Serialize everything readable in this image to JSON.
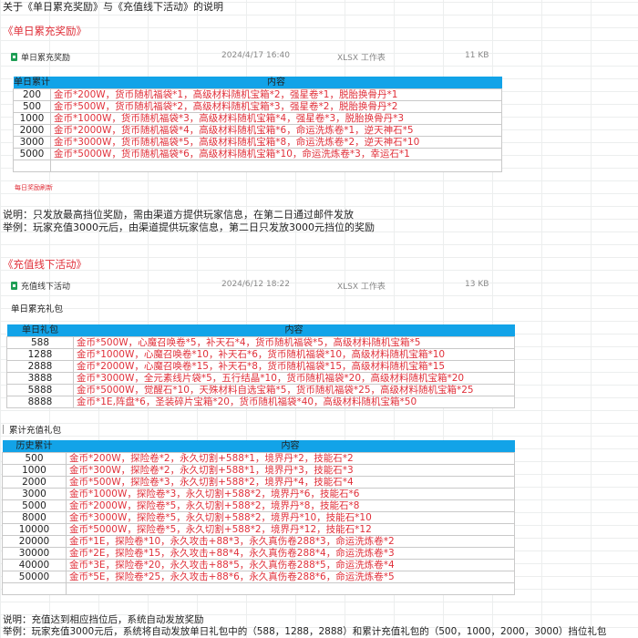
{
  "title": "关于《单日累充奖励》与《充值线下活动》的说明",
  "section1": {
    "heading": "《单日累充奖励》",
    "file": {
      "name": "单日累充奖励",
      "date": "2024/4/17 16:40",
      "type": "XLSX 工作表",
      "size": "11 KB",
      "icon": "xlsx-file-icon"
    },
    "table": {
      "headers": [
        "单日累计",
        "内容"
      ],
      "rows": [
        [
          "200",
          "金币*200W，货币随机福袋*1，高级材料随机宝箱*2，强星卷*1，脱胎换骨丹*1"
        ],
        [
          "500",
          "金币*500W，货币随机福袋*2，高级材料随机宝箱*3，强星卷*2，脱胎换骨丹*2"
        ],
        [
          "1000",
          "金币*1000W，货币随机福袋*3，高级材料随机宝箱*4，强星卷*3，脱胎换骨丹*3"
        ],
        [
          "2000",
          "金币*2000W，货币随机福袋*4，高级材料随机宝箱*6，命运洗炼卷*1，逆天神石*5"
        ],
        [
          "3000",
          "金币*3000W，货币随机福袋*5，高级材料随机宝箱*8，命运洗炼卷*2，逆天神石*10"
        ],
        [
          "5000",
          "金币*5000W，货币随机福袋*6，高级材料随机宝箱*10，命运洗炼卷*3，幸运石*1"
        ]
      ]
    },
    "note_small": "每日奖励刷新",
    "desc": "说明：只发放最高挡位奖励，需由渠道方提供玩家信息，在第二日通过邮件发放",
    "example": "举例：玩家充值3000元后，由渠道提供玩家信息，第二日只发放3000元挡位的奖励"
  },
  "section2": {
    "heading": "《充值线下活动》",
    "file": {
      "name": "充值线下活动",
      "date": "2024/6/12 18:22",
      "type": "XLSX 工作表",
      "size": "13 KB",
      "icon": "xlsx-file-icon"
    },
    "sub1": "单日累充礼包",
    "table1": {
      "headers": [
        "单日礼包",
        "内容"
      ],
      "rows": [
        [
          "588",
          "金币*500W，心魔召唤卷*5，补天石*4，货币随机福袋*5，高级材料随机宝箱*5"
        ],
        [
          "1288",
          "金币*1000W，心魔召唤卷*10，补天石*6，货币随机福袋*10，高级材料随机宝箱*10"
        ],
        [
          "2888",
          "金币*2000W，心魔召唤卷*15，补天石*8，货币随机福袋*15，高级材料随机宝箱*15"
        ],
        [
          "3888",
          "金币*3000W，全元素线片袋*5，五行结晶*10，货币随机福袋*20，高级材料随机宝箱*20"
        ],
        [
          "5888",
          "金币*5000W，觉醒石*10，天殊材料自选宝箱*5，货币随机福袋*25，高级材料随机宝箱*25"
        ],
        [
          "8888",
          "金币*1E,阵盘*6，圣装碎片宝箱*20，货币随机福袋*40，高级材料随机宝箱*50"
        ]
      ]
    },
    "sub2": "累计充值礼包",
    "table2": {
      "headers": [
        "历史累计",
        "内容"
      ],
      "rows": [
        [
          "500",
          "金币*200W，探险卷*2，永久切割+588*1，境界丹*2，技能石*2"
        ],
        [
          "1000",
          "金币*300W，探险卷*2，永久切割+588*1，境界丹*3，技能石*3"
        ],
        [
          "2000",
          "金币*500W，探险卷*3，永久切割+588*2，境界丹*4，技能石*4"
        ],
        [
          "3000",
          "金币*1000W，探险卷*3，永久切割+588*2，境界丹*6，技能石*6"
        ],
        [
          "5000",
          "金币*2000W，探险卷*5，永久切割+588*2，境界丹*8，技能石*8"
        ],
        [
          "8000",
          "金币*3000W，探险卷*5，永久切割+588*2，境界丹*10，技能石*10"
        ],
        [
          "10000",
          "金币*5000W，探险卷*5，永久切割+588*2，境界丹*12，技能石*12"
        ],
        [
          "20000",
          "金币*1E，探险卷*10，永久攻击+88*3，永久真伤卷288*3，命运洗炼卷*2"
        ],
        [
          "30000",
          "金币*2E，探险卷*15，永久攻击+88*4，永久真伤卷288*4，命运洗炼卷*3"
        ],
        [
          "40000",
          "金币*3E，探险卷*20，永久攻击+88*5，永久真伤卷288*5，命运洗炼卷*4"
        ],
        [
          "50000",
          "金币*5E，探险卷*25，永久攻击+88*6，永久真伤卷288*6，命运洗炼卷*5"
        ]
      ]
    },
    "desc": "说明：充值达到相应挡位后，系统自动发放奖励",
    "example": "举例：玩家充值3000元后，系统将自动发放单日礼包中的（588，1288，2888）和累计充值礼包的（500，1000，2000，3000）挡位礼包"
  },
  "colors": {
    "header": "#12a3e8",
    "reward_text": "#e0303a",
    "file_icon": "#1e9e55"
  }
}
